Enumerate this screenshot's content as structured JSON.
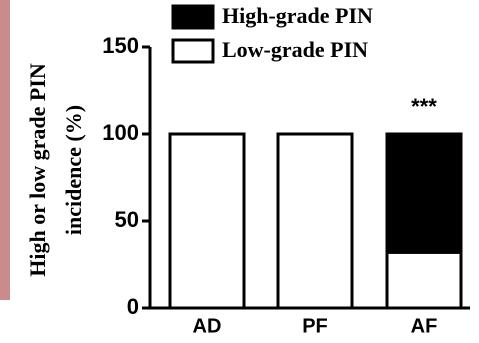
{
  "chart_data": {
    "type": "stacked-bar",
    "y_label_lines": [
      "High or low grade PIN",
      "incidence (%)"
    ],
    "categories": [
      "AD",
      "PF",
      "AF"
    ],
    "series": [
      {
        "name": "High-grade PIN",
        "color": "#000000",
        "values": [
          0,
          0,
          68
        ]
      },
      {
        "name": "Low-grade PIN",
        "color": "#ffffff",
        "values": [
          100,
          100,
          32
        ]
      }
    ],
    "annotation": "***",
    "ylim": [
      0,
      150
    ],
    "yticks": [
      0,
      50,
      100,
      150
    ]
  }
}
